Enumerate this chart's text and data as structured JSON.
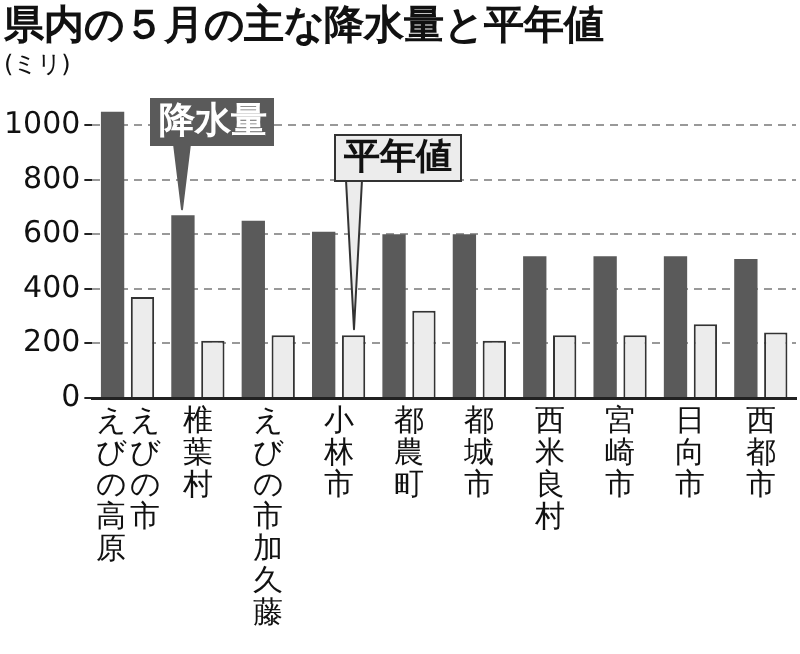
{
  "chart_data": {
    "type": "bar",
    "title": "県内の５月の主な降水量と平年値",
    "ylabel": "(ミリ)",
    "categories": [
      "えびの市えびの高原",
      "椎葉村",
      "えびの市加久藤",
      "小林市",
      "都農町",
      "都城市",
      "西米良村",
      "宮崎市",
      "日向市",
      "西都市"
    ],
    "series": [
      {
        "name": "降水量",
        "color": "#5a5a5a",
        "values": [
          1050,
          670,
          650,
          610,
          600,
          600,
          520,
          520,
          520,
          510
        ]
      },
      {
        "name": "平年値",
        "color": "#ececec",
        "values": [
          370,
          210,
          230,
          230,
          320,
          210,
          230,
          230,
          270,
          240
        ]
      }
    ],
    "ylim": [
      0,
      1100
    ],
    "yticks": [
      0,
      200,
      400,
      600,
      800,
      1000
    ],
    "grid": "y"
  }
}
